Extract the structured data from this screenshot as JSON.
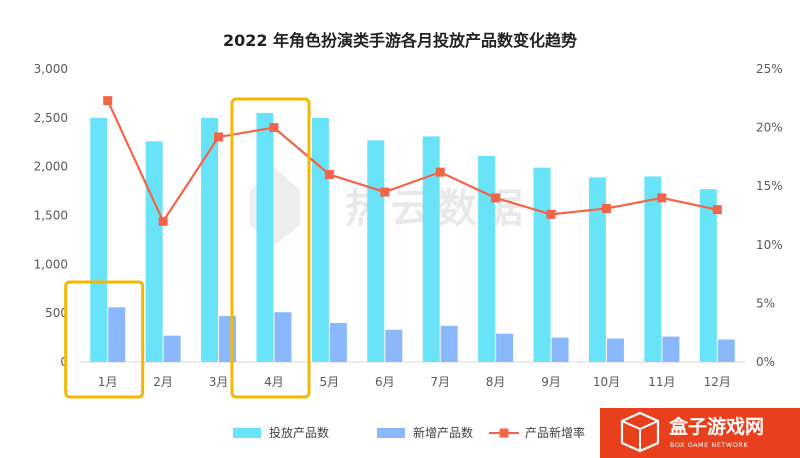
{
  "chart_data": {
    "type": "bar",
    "title": "2022 年角色扮演类手游各月投放产品数变化趋势",
    "categories": [
      "1月",
      "2月",
      "3月",
      "4月",
      "5月",
      "6月",
      "7月",
      "8月",
      "9月",
      "10月",
      "11月",
      "12月"
    ],
    "series": [
      {
        "name": "投放产品数",
        "type": "bar",
        "axis": "left",
        "color": "#69e3f8",
        "values": [
          2500,
          2260,
          2500,
          2550,
          2500,
          2270,
          2310,
          2110,
          1990,
          1890,
          1900,
          1770
        ]
      },
      {
        "name": "新增产品数",
        "type": "bar",
        "axis": "left",
        "color": "#8bb7fb",
        "values": [
          560,
          270,
          470,
          510,
          400,
          330,
          370,
          290,
          250,
          240,
          260,
          230
        ]
      },
      {
        "name": "产品新增率",
        "type": "line",
        "axis": "right",
        "color": "#f26549",
        "values": [
          0.223,
          0.12,
          0.192,
          0.2,
          0.16,
          0.145,
          0.162,
          0.14,
          0.126,
          0.131,
          0.14,
          0.13
        ]
      }
    ],
    "yleft": {
      "ticks": [
        "3,000",
        "2,500",
        "2,000",
        "1,500",
        "1,000",
        "500",
        "0"
      ],
      "ylim": [
        0,
        3000
      ]
    },
    "yright": {
      "ticks": [
        "25%",
        "20%",
        "15%",
        "10%",
        "5%",
        "0%"
      ],
      "ylim": [
        0,
        0.25
      ]
    },
    "legend": "bottom",
    "grid": false,
    "highlighted_categories": [
      "1月",
      "4月"
    ],
    "highlight_color": "#f5b700"
  },
  "watermark": "热云数据",
  "logo": {
    "name": "盒子游戏网",
    "subtitle": "BOX GAME NETWORK",
    "bg_color": "#e8401c"
  }
}
